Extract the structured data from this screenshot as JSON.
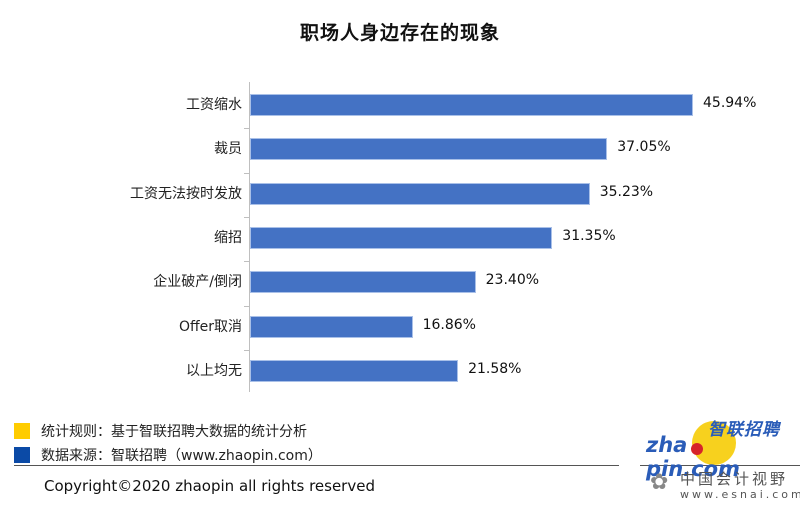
{
  "chart_data": {
    "type": "bar",
    "orientation": "horizontal",
    "title": "职场人身边存在的现象",
    "categories": [
      "工资缩水",
      "裁员",
      "工资无法按时发放",
      "缩招",
      "企业破产/倒闭",
      "Offer取消",
      "以上均无"
    ],
    "values": [
      45.94,
      37.05,
      35.23,
      31.35,
      23.4,
      16.86,
      21.58
    ],
    "value_labels": [
      "45.94%",
      "37.05%",
      "35.23%",
      "31.35%",
      "23.40%",
      "16.86%",
      "21.58%"
    ],
    "unit": "%",
    "xlabel": "",
    "ylabel": "",
    "xlim": [
      0,
      46
    ],
    "grid": false,
    "bar_color": "#4472c4",
    "legend": null
  },
  "notes": [
    {
      "swatch_color": "#ffcc00",
      "text": "统计规则：基于智联招聘大数据的统计分析"
    },
    {
      "swatch_color": "#0b4aa6",
      "text": "数据来源：智联招聘（www.zhaopin.com）"
    }
  ],
  "copyright": "Copyright©2020 zhaopin all rights reserved",
  "logo": {
    "cn": "智联招聘",
    "en_left": "zha",
    "en_right": "pin.com"
  },
  "watermark": {
    "cn": "中国会计视野",
    "url": "www.esnai.com",
    "icon": "flower-icon"
  }
}
